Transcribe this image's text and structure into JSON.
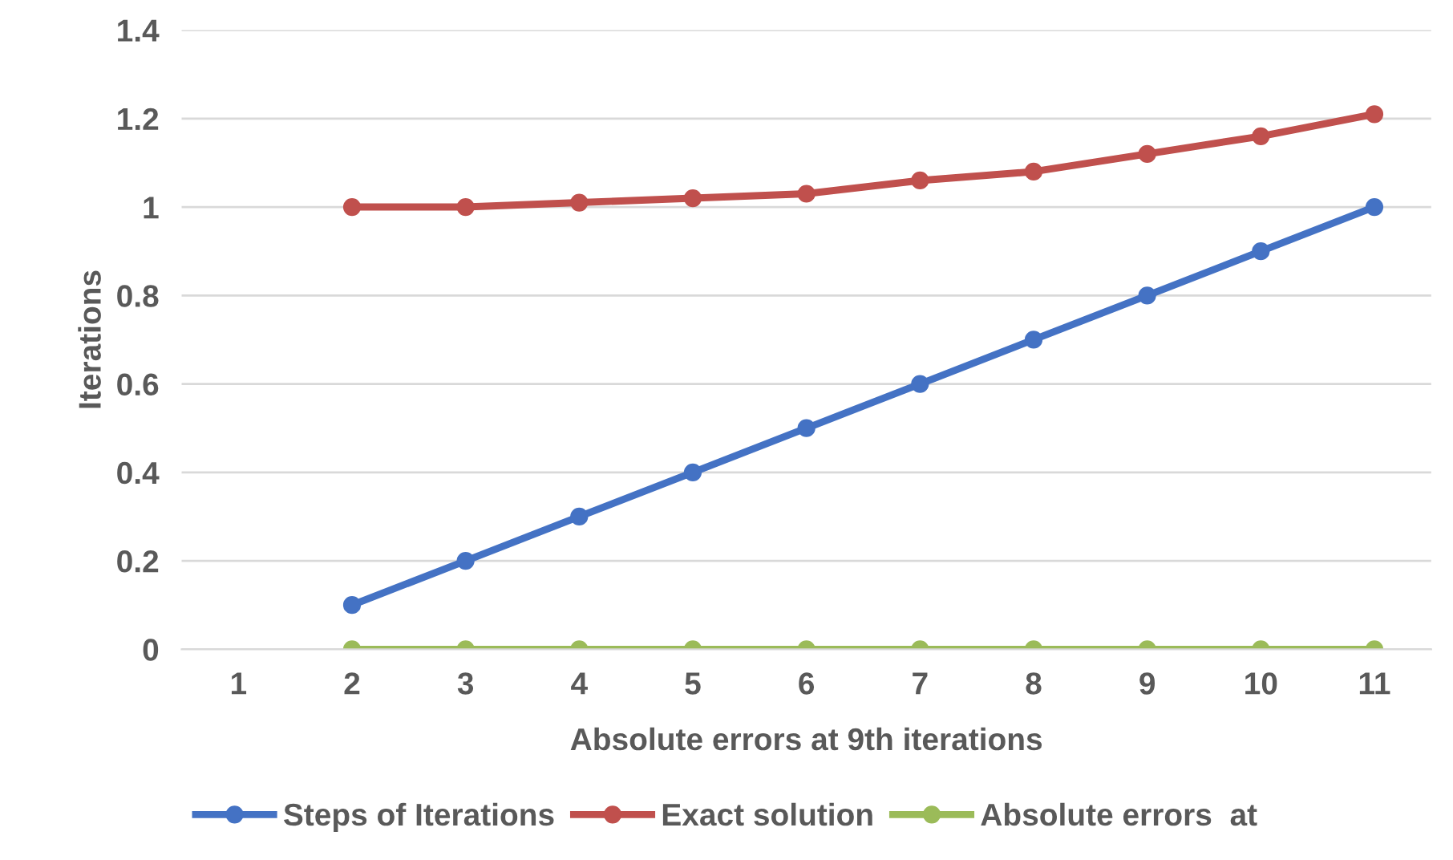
{
  "chart_data": {
    "type": "line",
    "xlabel": "Absolute errors at 9th iterations",
    "ylabel": "Iterations",
    "categories": [
      "1",
      "2",
      "3",
      "4",
      "5",
      "6",
      "7",
      "8",
      "9",
      "10",
      "11"
    ],
    "series": [
      {
        "name": "Steps of Iterations",
        "color": "#4472c4",
        "values": [
          null,
          0.1,
          0.2,
          0.3,
          0.4,
          0.5,
          0.6,
          0.7,
          0.8,
          0.9,
          1.0
        ]
      },
      {
        "name": "Exact solution",
        "color": "#c0504d",
        "values": [
          null,
          1.0,
          1.0,
          1.01,
          1.02,
          1.03,
          1.06,
          1.08,
          1.12,
          1.16,
          1.21
        ]
      },
      {
        "name": "Absolute errors  at",
        "color": "#9bbb59",
        "values": [
          null,
          0,
          0,
          0,
          0,
          0,
          0,
          0,
          0,
          0,
          0
        ]
      }
    ],
    "ylim": [
      0,
      1.4
    ],
    "yticks": [
      0,
      {
        "value": 0.2,
        "label": "0.2"
      },
      {
        "value": 0.4,
        "label": "0.4"
      },
      {
        "value": 0.6,
        "label": "0.6"
      },
      {
        "value": 0.8,
        "label": "0.8"
      },
      1,
      {
        "value": 1.2,
        "label": "1.2"
      },
      {
        "value": 1.4,
        "label": "1.4"
      }
    ],
    "grid": "y",
    "legend": "bottom",
    "marker": "circle",
    "line_style": "solid"
  }
}
